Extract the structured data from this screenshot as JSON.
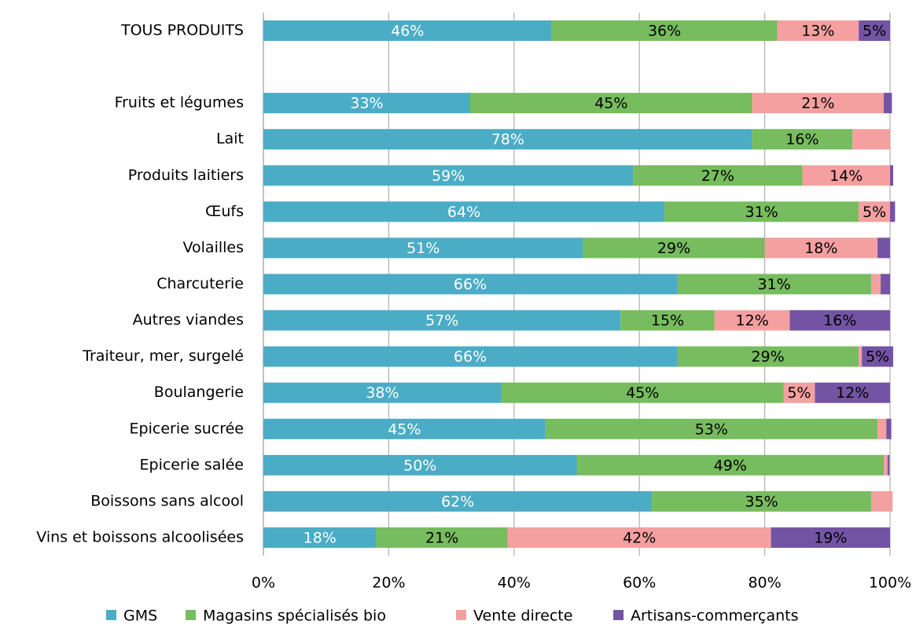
{
  "chart_data": {
    "type": "stacked_barh",
    "categories": [
      "TOUS PRODUITS",
      null,
      "Fruits et légumes",
      "Lait",
      "Produits laitiers",
      "Œufs",
      "Volailles",
      "Charcuterie",
      "Autres viandes",
      "Traiteur, mer, surgelé",
      "Boulangerie",
      "Epicerie sucrée",
      "Epicerie salée",
      "Boissons sans alcool",
      "Vins et boissons alcoolisées"
    ],
    "series": [
      {
        "name": "GMS",
        "color": "#4bacc6",
        "values": [
          46,
          null,
          33,
          78,
          59,
          64,
          51,
          66,
          57,
          66,
          38,
          45,
          50,
          62,
          18
        ],
        "value_labels": [
          "46%",
          null,
          "33%",
          "78%",
          "59%",
          "64%",
          "51%",
          "66%",
          "57%",
          "66%",
          "38%",
          "45%",
          "50%",
          "62%",
          "18%"
        ]
      },
      {
        "name": "Magasins spécialisés bio",
        "color": "#77bc5e",
        "values": [
          36,
          null,
          45,
          16,
          27,
          31,
          29,
          31,
          15,
          29,
          45,
          53,
          49,
          35,
          21
        ],
        "value_labels": [
          "36%",
          null,
          "45%",
          "16%",
          "27%",
          "31%",
          "29%",
          "31%",
          "15%",
          "29%",
          "45%",
          "53%",
          "49%",
          "35%",
          "21%"
        ]
      },
      {
        "name": "Vente directe",
        "color": "#f4a0a0",
        "values": [
          13,
          null,
          21,
          6,
          14,
          5,
          18,
          1.5,
          12,
          0.5,
          5,
          1.4,
          0.6,
          3.4,
          42
        ],
        "value_labels": [
          "13%",
          null,
          "21%",
          null,
          "14%",
          "5%",
          "18%",
          null,
          "12%",
          null,
          "5%",
          null,
          null,
          null,
          "42%"
        ]
      },
      {
        "name": "Artisans-commerçants",
        "color": "#7354a4",
        "values": [
          5,
          null,
          1.3,
          0,
          0.5,
          0.8,
          2,
          1.5,
          16,
          5,
          12,
          0.8,
          0.3,
          0,
          19
        ],
        "value_labels": [
          "5%",
          null,
          null,
          null,
          null,
          null,
          null,
          null,
          "16%",
          "5%",
          "12%",
          null,
          null,
          null,
          "19%"
        ]
      }
    ],
    "xlim": [
      0,
      100
    ],
    "xticks": [
      {
        "value": 0,
        "label": "0%"
      },
      {
        "value": 20,
        "label": "20%"
      },
      {
        "value": 40,
        "label": "40%"
      },
      {
        "value": 60,
        "label": "60%"
      },
      {
        "value": 80,
        "label": "80%"
      },
      {
        "value": 100,
        "label": "100%"
      }
    ],
    "grid": true,
    "legend": "bottom"
  }
}
